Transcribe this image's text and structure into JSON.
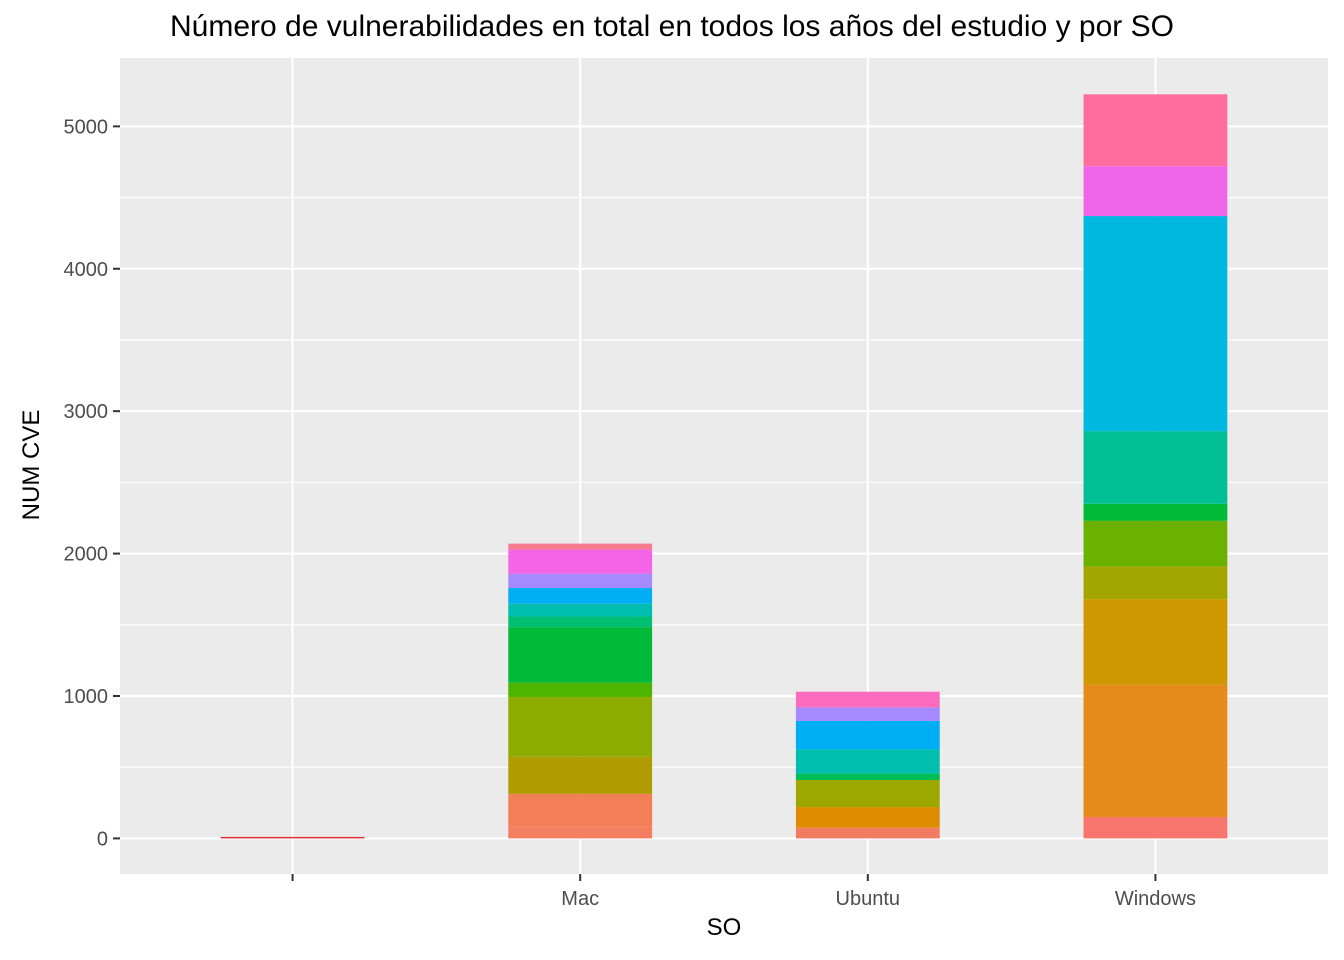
{
  "chart_data": {
    "type": "bar",
    "stacked": true,
    "title": "Número de vulnerabilidades en total en todos los años del estudio y por SO",
    "xlabel": "SO",
    "ylabel": "NUM CVE",
    "categories": [
      "",
      "Mac",
      "Ubuntu",
      "Windows"
    ],
    "ylim": [
      -250,
      5480
    ],
    "yticks": [
      0,
      1000,
      2000,
      3000,
      4000,
      5000
    ],
    "grid": true,
    "legend": "none",
    "stacks": [
      {
        "category": "",
        "segments": [
          {
            "value": 6,
            "color": "#E0303A"
          }
        ]
      },
      {
        "category": "Mac",
        "segments": [
          {
            "value": 85,
            "color": "#F47E5F"
          },
          {
            "value": 228,
            "color": "#F27F56"
          },
          {
            "value": 260,
            "color": "#B09C00"
          },
          {
            "value": 420,
            "color": "#8DAB00"
          },
          {
            "value": 100,
            "color": "#4DB500"
          },
          {
            "value": 390,
            "color": "#00BA38"
          },
          {
            "value": 75,
            "color": "#00BF72"
          },
          {
            "value": 90,
            "color": "#00BFB0"
          },
          {
            "value": 110,
            "color": "#00AEF4"
          },
          {
            "value": 100,
            "color": "#A58AFF"
          },
          {
            "value": 170,
            "color": "#F464E6"
          },
          {
            "value": 42,
            "color": "#F87A8E"
          }
        ]
      },
      {
        "category": "Ubuntu",
        "segments": [
          {
            "value": 75,
            "color": "#F27C62"
          },
          {
            "value": 145,
            "color": "#DE8C00"
          },
          {
            "value": 190,
            "color": "#9CA700"
          },
          {
            "value": 45,
            "color": "#00BD55"
          },
          {
            "value": 170,
            "color": "#00BFAE"
          },
          {
            "value": 200,
            "color": "#00AEF4"
          },
          {
            "value": 95,
            "color": "#A58AFF"
          },
          {
            "value": 110,
            "color": "#FB6BBE"
          }
        ]
      },
      {
        "category": "Windows",
        "segments": [
          {
            "value": 150,
            "color": "#F8766D"
          },
          {
            "value": 930,
            "color": "#E68B1A"
          },
          {
            "value": 600,
            "color": "#CF9700"
          },
          {
            "value": 230,
            "color": "#A3A500"
          },
          {
            "value": 320,
            "color": "#6BB100"
          },
          {
            "value": 120,
            "color": "#00BA38"
          },
          {
            "value": 510,
            "color": "#00BF95"
          },
          {
            "value": 1510,
            "color": "#00B8E0"
          },
          {
            "value": 350,
            "color": "#F066EA"
          },
          {
            "value": 505,
            "color": "#FF6C9E"
          }
        ]
      }
    ]
  }
}
